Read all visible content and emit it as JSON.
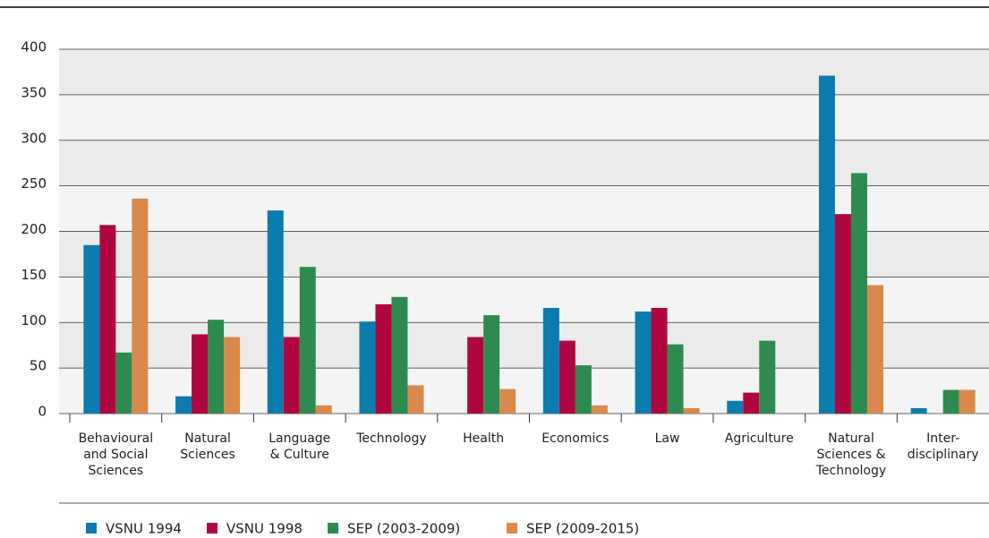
{
  "chart_data": {
    "type": "bar",
    "categories": [
      "Behavioural\nand Social\nSciences",
      "Natural\nSciences",
      "Language\n& Culture",
      "Technology",
      "Health",
      "Economics",
      "Law",
      "Agriculture",
      "Natural\nSciences &\nTechnology",
      "Inter-\ndisciplinary"
    ],
    "series": [
      {
        "name": "VSNU 1994",
        "color": "#0a7cad",
        "values": [
          185,
          19,
          223,
          101,
          null,
          116,
          112,
          14,
          371,
          6
        ]
      },
      {
        "name": "VSNU 1998",
        "color": "#b0063f",
        "values": [
          207,
          87,
          84,
          120,
          84,
          80,
          116,
          23,
          219,
          null
        ]
      },
      {
        "name": "SEP (2003-2009)",
        "color": "#2e8b4f",
        "values": [
          67,
          103,
          161,
          128,
          108,
          53,
          76,
          80,
          264,
          26
        ]
      },
      {
        "name": "SEP (2009-2015)",
        "color": "#d8894b",
        "values": [
          236,
          84,
          9,
          31,
          27,
          9,
          6,
          null,
          141,
          26
        ]
      }
    ],
    "ylim": [
      0,
      400
    ],
    "yticks": [
      0,
      50,
      100,
      150,
      200,
      250,
      300,
      350,
      400
    ],
    "grid": true
  }
}
